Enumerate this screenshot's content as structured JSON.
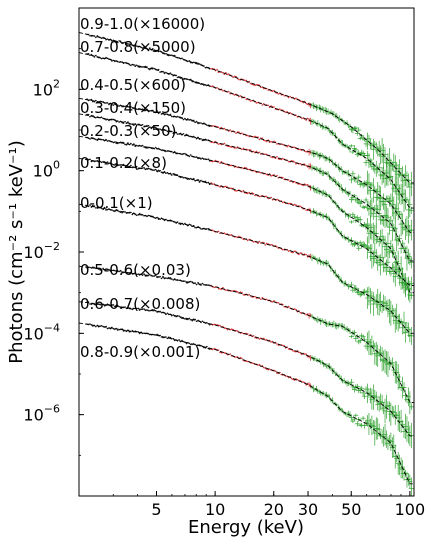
{
  "chart_data": {
    "type": "scatter",
    "title": "",
    "xlabel": "Energy (keV)",
    "ylabel": "Photons (cm⁻² s⁻¹ keV⁻¹)",
    "x_scale": "log",
    "y_scale": "log",
    "xlim": [
      2.0,
      105
    ],
    "ylim": [
      1e-08,
      10000.0
    ],
    "x_ticks": [
      {
        "value": 5,
        "label": "5"
      },
      {
        "value": 10,
        "label": "10"
      },
      {
        "value": 20,
        "label": "20"
      },
      {
        "value": 30,
        "label": "30"
      },
      {
        "value": 50,
        "label": "50"
      },
      {
        "value": 100,
        "label": "100"
      }
    ],
    "y_ticks": [
      {
        "value": 100,
        "label": "10^2",
        "base": "10",
        "exp": "2"
      },
      {
        "value": 1,
        "label": "10^0",
        "base": "10",
        "exp": "0"
      },
      {
        "value": 0.01,
        "label": "10^-2",
        "base": "10",
        "exp": "−2"
      },
      {
        "value": 0.0001,
        "label": "10^-4",
        "base": "10",
        "exp": "−4"
      },
      {
        "value": 1e-06,
        "label": "10^-6",
        "base": "10",
        "exp": "−6"
      }
    ],
    "legend": "none",
    "colors": {
      "low_energy": "#000000",
      "mid_energy": "#d62728",
      "high_energy": "#2ca02c",
      "model": "#000000"
    },
    "series": [
      {
        "name": "0.9-1.0(×16000)",
        "model_points": [
          [
            2,
            2500
          ],
          [
            5,
            900
          ],
          [
            10,
            300
          ],
          [
            20,
            90
          ],
          [
            30,
            45
          ],
          [
            40,
            25
          ],
          [
            50,
            12
          ],
          [
            70,
            3
          ],
          [
            100,
            0.5
          ]
        ]
      },
      {
        "name": "0.7-0.8(×5000)",
        "model_points": [
          [
            2,
            800
          ],
          [
            5,
            300
          ],
          [
            10,
            110
          ],
          [
            20,
            35
          ],
          [
            30,
            18
          ],
          [
            38,
            11
          ],
          [
            45,
            4.5
          ],
          [
            60,
            2
          ],
          [
            80,
            0.6
          ],
          [
            100,
            0.12
          ]
        ]
      },
      {
        "name": "0.4-0.5(×600)",
        "model_points": [
          [
            2,
            60
          ],
          [
            5,
            28
          ],
          [
            10,
            12
          ],
          [
            20,
            5
          ],
          [
            30,
            3
          ],
          [
            38,
            2
          ],
          [
            45,
            1
          ],
          [
            60,
            0.45
          ],
          [
            80,
            0.15
          ],
          [
            100,
            0.03
          ]
        ]
      },
      {
        "name": "0.3-0.4(×150)",
        "model_points": [
          [
            2,
            25
          ],
          [
            5,
            11
          ],
          [
            10,
            5
          ],
          [
            20,
            2.2
          ],
          [
            30,
            1.3
          ],
          [
            38,
            0.8
          ],
          [
            45,
            0.35
          ],
          [
            60,
            0.15
          ],
          [
            80,
            0.05
          ],
          [
            100,
            0.006
          ]
        ]
      },
      {
        "name": "0.2-0.3(×50)",
        "model_points": [
          [
            2,
            7
          ],
          [
            5,
            3.5
          ],
          [
            10,
            1.7
          ],
          [
            20,
            0.75
          ],
          [
            30,
            0.42
          ],
          [
            38,
            0.25
          ],
          [
            45,
            0.1
          ],
          [
            60,
            0.04
          ],
          [
            80,
            0.012
          ],
          [
            100,
            0.001
          ]
        ]
      },
      {
        "name": "0.1-0.2(×8)",
        "model_points": [
          [
            2,
            2
          ],
          [
            5,
            1
          ],
          [
            10,
            0.45
          ],
          [
            20,
            0.2
          ],
          [
            30,
            0.11
          ],
          [
            38,
            0.07
          ],
          [
            45,
            0.025
          ],
          [
            60,
            0.012
          ],
          [
            80,
            0.004
          ],
          [
            100,
            0.0015
          ]
        ]
      },
      {
        "name": "0-0.1(×1)",
        "model_points": [
          [
            2,
            0.15
          ],
          [
            5,
            0.07
          ],
          [
            10,
            0.032
          ],
          [
            20,
            0.014
          ],
          [
            30,
            0.008
          ],
          [
            38,
            0.005
          ],
          [
            45,
            0.0018
          ],
          [
            60,
            0.0009
          ],
          [
            80,
            0.00035
          ],
          [
            100,
            0.0001
          ]
        ]
      },
      {
        "name": "0.5-0.6(×0.03)",
        "model_points": [
          [
            2,
            0.0045
          ],
          [
            5,
            0.0025
          ],
          [
            10,
            0.0014
          ],
          [
            20,
            0.0006
          ],
          [
            30,
            0.00028
          ],
          [
            38,
            0.00017
          ],
          [
            45,
            0.00015
          ],
          [
            60,
            6e-05
          ],
          [
            80,
            1.8e-05
          ],
          [
            100,
            2e-06
          ]
        ]
      },
      {
        "name": "0.6-0.7(×0.008)",
        "model_points": [
          [
            2,
            0.0006
          ],
          [
            5,
            0.00035
          ],
          [
            10,
            0.00016
          ],
          [
            20,
            6e-05
          ],
          [
            30,
            2.8e-05
          ],
          [
            38,
            1.6e-05
          ],
          [
            45,
            7e-06
          ],
          [
            60,
            3.5e-06
          ],
          [
            80,
            1.2e-06
          ],
          [
            100,
            3e-07
          ]
        ]
      },
      {
        "name": "0.8-0.9(×0.001)",
        "model_points": [
          [
            2,
            0.00018
          ],
          [
            5,
            9e-05
          ],
          [
            10,
            4e-05
          ],
          [
            20,
            1.2e-05
          ],
          [
            30,
            5.5e-06
          ],
          [
            38,
            2.8e-06
          ],
          [
            45,
            1.2e-06
          ],
          [
            60,
            6e-07
          ],
          [
            80,
            2e-07
          ],
          [
            100,
            2e-08
          ]
        ]
      }
    ]
  }
}
